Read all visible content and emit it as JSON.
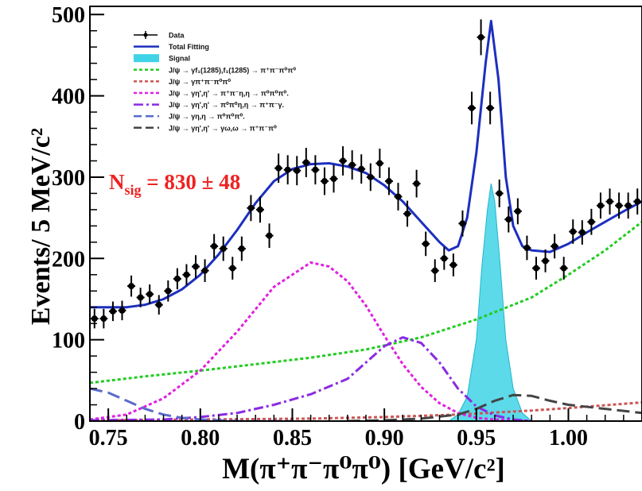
{
  "chart_data": {
    "type": "line",
    "title": "",
    "xlabel": "M(π⁺π⁻π⁰π⁰) [GeV/c²]",
    "ylabel": "Events/ 5 MeV/c²",
    "xlim": [
      0.74,
      1.04
    ],
    "ylim": [
      0,
      510
    ],
    "xticks": [
      "0.75",
      "0.80",
      "0.85",
      "0.90",
      "0.95",
      "1.00"
    ],
    "xtick_values": [
      0.75,
      0.8,
      0.85,
      0.9,
      0.95,
      1.0
    ],
    "yticks": [
      "0",
      "100",
      "200",
      "300",
      "400",
      "500"
    ],
    "ytick_values": [
      0,
      100,
      200,
      300,
      400,
      500
    ],
    "annotation": {
      "text": "N",
      "sub": "sig",
      "value": "= 830 ± 48"
    },
    "legend": {
      "placement": "top-left",
      "entries": [
        {
          "label": "Data",
          "style": "data",
          "color": "#000000"
        },
        {
          "label": "Total Fitting",
          "style": "solid",
          "color": "#1c2fbf"
        },
        {
          "label": "Signal",
          "style": "fill",
          "color": "#3fd3e6"
        },
        {
          "label": "J/ψ → γf₁(1285),f₁(1285) → π⁺π⁻π⁰π⁰",
          "style": "dotted",
          "color": "#22cc22"
        },
        {
          "label": "J/ψ → γπ⁺π⁻π⁰π⁰",
          "style": "dotted",
          "color": "#cc5555"
        },
        {
          "label": "J/ψ → γη',η' → π⁺π⁻η,η → π⁰π⁰π⁰.",
          "style": "dotted",
          "color": "#e020e0"
        },
        {
          "label": "J/ψ → γη',η' → π⁰π⁰η,η → π⁺π⁻γ.",
          "style": "dashdot",
          "color": "#8a2be2"
        },
        {
          "label": "J/ψ → γη,η → π⁰π⁰π⁰.",
          "style": "dashed",
          "color": "#5a6bcc"
        },
        {
          "label": "J/ψ → γη',η' → γω,ω → π⁺π⁻π⁰",
          "style": "dashed",
          "color": "#444444"
        }
      ]
    },
    "data_points": {
      "x": [
        0.7425,
        0.7475,
        0.7525,
        0.7575,
        0.7625,
        0.7675,
        0.7725,
        0.7775,
        0.7825,
        0.7875,
        0.7925,
        0.7975,
        0.8025,
        0.8075,
        0.8125,
        0.8175,
        0.8225,
        0.8275,
        0.8325,
        0.8375,
        0.8425,
        0.8475,
        0.8525,
        0.8575,
        0.8625,
        0.8675,
        0.8725,
        0.8775,
        0.8825,
        0.8875,
        0.8925,
        0.8975,
        0.9025,
        0.9075,
        0.9125,
        0.9175,
        0.9225,
        0.9275,
        0.9325,
        0.9375,
        0.9425,
        0.9475,
        0.9525,
        0.9575,
        0.9625,
        0.9675,
        0.9725,
        0.9775,
        0.9825,
        0.9875,
        0.9925,
        0.9975,
        1.0025,
        1.0075,
        1.0125,
        1.0175,
        1.0225,
        1.0275,
        1.0325,
        1.0375
      ],
      "y": [
        126,
        126,
        135,
        136,
        166,
        152,
        156,
        143,
        160,
        175,
        180,
        190,
        185,
        215,
        212,
        188,
        212,
        262,
        260,
        228,
        311,
        309,
        308,
        318,
        309,
        295,
        298,
        320,
        315,
        310,
        300,
        317,
        295,
        276,
        255,
        292,
        218,
        185,
        200,
        192,
        243,
        385,
        472,
        385,
        280,
        248,
        258,
        213,
        188,
        197,
        215,
        188,
        233,
        232,
        245,
        265,
        270,
        265,
        265,
        270
      ],
      "err": [
        12,
        12,
        12,
        12,
        13,
        12,
        12,
        12,
        13,
        13,
        13,
        14,
        14,
        15,
        15,
        14,
        15,
        16,
        16,
        15,
        18,
        18,
        18,
        18,
        18,
        17,
        17,
        18,
        18,
        18,
        17,
        18,
        17,
        17,
        16,
        17,
        15,
        14,
        14,
        14,
        16,
        20,
        22,
        20,
        17,
        16,
        16,
        15,
        14,
        14,
        15,
        14,
        15,
        15,
        16,
        16,
        16,
        16,
        16,
        16
      ]
    },
    "series": [
      {
        "name": "Total Fitting",
        "x": [
          0.74,
          0.75,
          0.76,
          0.77,
          0.78,
          0.79,
          0.8,
          0.81,
          0.82,
          0.83,
          0.84,
          0.85,
          0.86,
          0.87,
          0.88,
          0.89,
          0.9,
          0.91,
          0.92,
          0.93,
          0.935,
          0.94,
          0.945,
          0.95,
          0.955,
          0.958,
          0.962,
          0.966,
          0.97,
          0.975,
          0.98,
          0.99,
          1.0,
          1.01,
          1.02,
          1.03,
          1.04
        ],
        "y": [
          140,
          140,
          140,
          143,
          150,
          162,
          180,
          205,
          235,
          268,
          295,
          310,
          316,
          317,
          313,
          305,
          290,
          270,
          245,
          220,
          210,
          215,
          250,
          330,
          440,
          492,
          420,
          300,
          240,
          215,
          210,
          208,
          218,
          232,
          245,
          258,
          270
        ]
      },
      {
        "name": "J/ψ → γf₁(1285),f₁(1285) → π⁺π⁻π⁰π⁰",
        "x": [
          0.74,
          0.77,
          0.8,
          0.83,
          0.86,
          0.89,
          0.92,
          0.95,
          0.98,
          1.0,
          1.02,
          1.04
        ],
        "y": [
          47,
          55,
          62,
          70,
          78,
          88,
          103,
          125,
          152,
          180,
          210,
          245
        ]
      },
      {
        "name": "J/ψ → γπ⁺π⁻π⁰π⁰",
        "x": [
          0.74,
          0.8,
          0.86,
          0.9,
          0.94,
          0.98,
          1.0,
          1.04
        ],
        "y": [
          1,
          2,
          3,
          5,
          8,
          13,
          16,
          23
        ]
      },
      {
        "name": "J/ψ → γη',η' → π⁺π⁻η,η → π⁰π⁰π⁰.",
        "x": [
          0.74,
          0.76,
          0.78,
          0.8,
          0.82,
          0.84,
          0.86,
          0.87,
          0.88,
          0.89,
          0.9,
          0.91,
          0.92,
          0.93,
          0.94,
          0.95,
          0.96,
          0.97,
          0.98
        ],
        "y": [
          2,
          8,
          28,
          62,
          110,
          165,
          195,
          190,
          172,
          142,
          105,
          70,
          42,
          22,
          10,
          4,
          2,
          1,
          0
        ]
      },
      {
        "name": "J/ψ → γη',η' → π⁰π⁰η,η → π⁺π⁻γ.",
        "x": [
          0.74,
          0.78,
          0.8,
          0.82,
          0.84,
          0.86,
          0.88,
          0.89,
          0.9,
          0.91,
          0.92,
          0.93,
          0.94,
          0.95,
          0.96,
          0.97,
          0.98
        ],
        "y": [
          1,
          2,
          5,
          10,
          20,
          33,
          52,
          72,
          92,
          103,
          96,
          72,
          40,
          18,
          7,
          2,
          0
        ]
      },
      {
        "name": "J/ψ → γη,η → π⁰π⁰π⁰.",
        "x": [
          0.74,
          0.75,
          0.76,
          0.77,
          0.78,
          0.79,
          0.8,
          0.82,
          0.85
        ],
        "y": [
          40,
          35,
          25,
          15,
          8,
          4,
          2,
          0,
          0
        ]
      },
      {
        "name": "J/ψ → γη',η' → γω,ω → π⁺π⁻π⁰",
        "x": [
          0.88,
          0.9,
          0.92,
          0.94,
          0.95,
          0.96,
          0.97,
          0.98,
          0.99,
          1.0,
          1.02,
          1.04
        ],
        "y": [
          0,
          1,
          3,
          8,
          15,
          25,
          32,
          31,
          25,
          20,
          15,
          10
        ]
      },
      {
        "name": "Signal",
        "x": [
          0.935,
          0.94,
          0.945,
          0.95,
          0.953,
          0.956,
          0.958,
          0.96,
          0.963,
          0.966,
          0.97,
          0.975,
          0.98
        ],
        "y": [
          0,
          8,
          30,
          100,
          190,
          260,
          292,
          270,
          190,
          100,
          40,
          10,
          0
        ]
      }
    ]
  }
}
